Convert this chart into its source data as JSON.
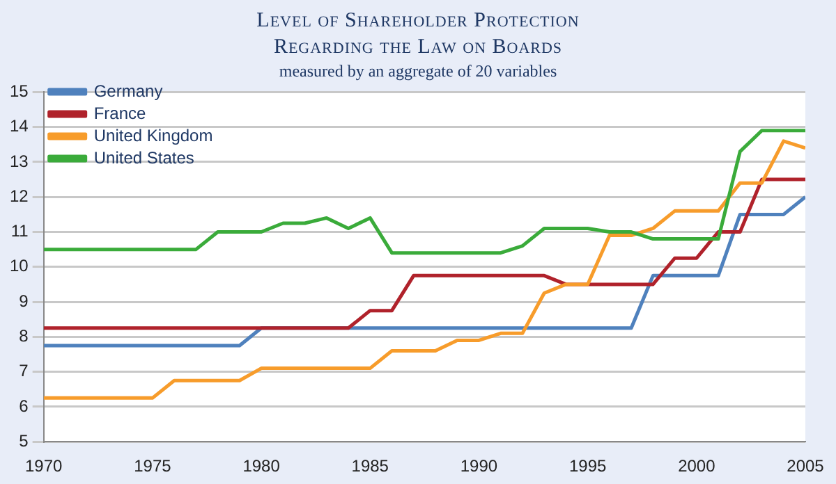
{
  "chart_data": {
    "type": "line",
    "title": "Level of Shareholder Protection\nRegarding the Law on Boards",
    "subtitle": "measured by an aggregate of 20 variables",
    "x": [
      1970,
      1971,
      1972,
      1973,
      1974,
      1975,
      1976,
      1977,
      1978,
      1979,
      1980,
      1981,
      1982,
      1983,
      1984,
      1985,
      1986,
      1987,
      1988,
      1989,
      1990,
      1991,
      1992,
      1993,
      1994,
      1995,
      1996,
      1997,
      1998,
      1999,
      2000,
      2001,
      2002,
      2003,
      2004,
      2005
    ],
    "series": [
      {
        "name": "Germany",
        "color": "#4f81bd",
        "values": [
          7.75,
          7.75,
          7.75,
          7.75,
          7.75,
          7.75,
          7.75,
          7.75,
          7.75,
          7.75,
          8.25,
          8.25,
          8.25,
          8.25,
          8.25,
          8.25,
          8.25,
          8.25,
          8.25,
          8.25,
          8.25,
          8.25,
          8.25,
          8.25,
          8.25,
          8.25,
          8.25,
          8.25,
          9.75,
          9.75,
          9.75,
          9.75,
          11.5,
          11.5,
          11.5,
          12
        ]
      },
      {
        "name": "France",
        "color": "#b0222b",
        "values": [
          8.25,
          8.25,
          8.25,
          8.25,
          8.25,
          8.25,
          8.25,
          8.25,
          8.25,
          8.25,
          8.25,
          8.25,
          8.25,
          8.25,
          8.25,
          8.75,
          8.75,
          9.75,
          9.75,
          9.75,
          9.75,
          9.75,
          9.75,
          9.75,
          9.5,
          9.5,
          9.5,
          9.5,
          9.5,
          10.25,
          10.25,
          11,
          11,
          12.5,
          12.5,
          12.5
        ]
      },
      {
        "name": "United Kingdom",
        "color": "#f79c2b",
        "values": [
          6.25,
          6.25,
          6.25,
          6.25,
          6.25,
          6.25,
          6.75,
          6.75,
          6.75,
          6.75,
          7.1,
          7.1,
          7.1,
          7.1,
          7.1,
          7.1,
          7.6,
          7.6,
          7.6,
          7.9,
          7.9,
          8.1,
          8.1,
          9.25,
          9.5,
          9.5,
          10.9,
          10.9,
          11.1,
          11.6,
          11.6,
          11.6,
          12.4,
          12.4,
          13.6,
          13.4
        ]
      },
      {
        "name": "United States",
        "color": "#3aab3a",
        "values": [
          10.5,
          10.5,
          10.5,
          10.5,
          10.5,
          10.5,
          10.5,
          10.5,
          11,
          11,
          11,
          11.25,
          11.25,
          11.4,
          11.1,
          11.4,
          10.4,
          10.4,
          10.4,
          10.4,
          10.4,
          10.4,
          10.6,
          11.1,
          11.1,
          11.1,
          11,
          11,
          10.8,
          10.8,
          10.8,
          10.8,
          13.3,
          13.9,
          13.9,
          13.9
        ]
      }
    ],
    "xlim": [
      1970,
      2005
    ],
    "xticks": [
      1970,
      1975,
      1980,
      1985,
      1990,
      1995,
      2000,
      2005
    ],
    "ylim": [
      5,
      15
    ],
    "yticks": [
      5,
      6,
      7,
      8,
      9,
      10,
      11,
      12,
      13,
      14,
      15
    ],
    "grid": "y",
    "legend": "top left",
    "marker": "none",
    "line_style": "solid"
  }
}
